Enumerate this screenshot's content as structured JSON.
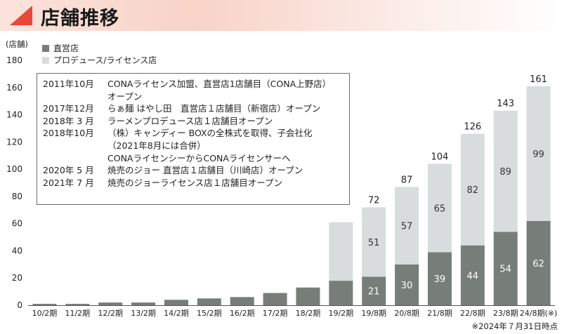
{
  "header": {
    "title": "店舗推移"
  },
  "colors": {
    "direct": "#777d79",
    "produce": "#d9dcdd",
    "accent": "#e8473a"
  },
  "chart_data": {
    "type": "bar",
    "stacked": true,
    "ylabel": "(店舗)",
    "ylim": [
      0,
      180
    ],
    "yticks": [
      0,
      20,
      40,
      60,
      80,
      100,
      120,
      140,
      160,
      180
    ],
    "categories": [
      "10/2期",
      "11/2期",
      "12/2期",
      "13/2期",
      "14/2期",
      "15/2期",
      "16/2期",
      "17/2期",
      "18/2期",
      "19/2期",
      "19/8期",
      "20/8期",
      "21/8期",
      "22/8期",
      "23/8期",
      "24/8期(※)"
    ],
    "series": [
      {
        "name": "直営店",
        "values": [
          1,
          1,
          2,
          2,
          4,
          5,
          6,
          9,
          13,
          18,
          21,
          30,
          39,
          44,
          54,
          62
        ]
      },
      {
        "name": "プロデュース/ライセンス店",
        "values": [
          0,
          0,
          0,
          0,
          0,
          0,
          0,
          0,
          0,
          43,
          51,
          57,
          65,
          82,
          89,
          99
        ]
      }
    ],
    "totals": [
      null,
      null,
      null,
      null,
      null,
      null,
      null,
      null,
      null,
      null,
      72,
      87,
      104,
      126,
      143,
      161
    ],
    "labels_direct": [
      null,
      null,
      null,
      null,
      null,
      null,
      null,
      null,
      null,
      null,
      "21",
      "30",
      "39",
      "44",
      "54",
      "62"
    ],
    "labels_produce": [
      null,
      null,
      null,
      null,
      null,
      null,
      null,
      null,
      null,
      null,
      "51",
      "57",
      "65",
      "82",
      "89",
      "99"
    ],
    "legend": [
      "直営店",
      "プロデュース/ライセンス店"
    ]
  },
  "annotation": [
    {
      "date": "2011年10月",
      "text": "CONAライセンス加盟、直営店1店舗目（CONA上野店）"
    },
    {
      "date": "",
      "text": "オープン"
    },
    {
      "date": "2017年12月",
      "text": "らぁ麺 はやし田　直営店１店舗目（新宿店）オープン"
    },
    {
      "date": "2018年 3 月",
      "text": "ラーメンプロデュース店１店舗目オープン"
    },
    {
      "date": "2018年10月",
      "text": "（株）キャンディー BOXの全株式を取得、子会社化"
    },
    {
      "date": "",
      "text": "（2021年8月には合併）"
    },
    {
      "date": "",
      "text": "CONAライセンシーからCONAライセンサーへ"
    },
    {
      "date": "2020年 5 月",
      "text": "焼売のジョー 直営店１店舗目（川崎店）オープン"
    },
    {
      "date": "2021年 7 月",
      "text": "焼売のジョーライセンス店１店舗目オープン"
    }
  ],
  "footnote": "※2024年７月31日時点"
}
